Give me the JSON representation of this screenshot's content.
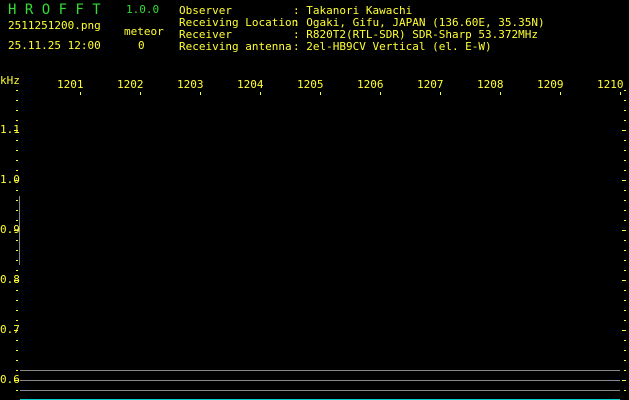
{
  "app": {
    "title": "H R O F F T",
    "version": "1.0.0"
  },
  "file": {
    "name": "2511251200.png",
    "datetime": "25.11.25 12:00"
  },
  "meteor": {
    "label": "meteor",
    "count": "0"
  },
  "info": [
    {
      "label": "Observer",
      "value": ": Takanori Kawachi"
    },
    {
      "label": "Receiving Location",
      "value": ": Ogaki, Gifu, JAPAN (136.60E, 35.35N)"
    },
    {
      "label": "Receiver",
      "value": ": R820T2(RTL-SDR) SDR-Sharp 53.372MHz"
    },
    {
      "label": "Receiving antenna",
      "value": ": 2el-HB9CV Vertical (el. E-W)"
    }
  ],
  "axis": {
    "unit": "kHz",
    "x_labels": [
      "1201",
      "1202",
      "1203",
      "1204",
      "1205",
      "1206",
      "1207",
      "1208",
      "1209",
      "1210"
    ],
    "y_labels": [
      "1.1",
      "1.0",
      "0.9",
      "0.8",
      "0.7",
      "0.6"
    ]
  },
  "colors": {
    "text": "#ffff33",
    "title": "#33dd33",
    "trace": "#888888",
    "baseline": "#00cccc",
    "background": "#000000"
  }
}
